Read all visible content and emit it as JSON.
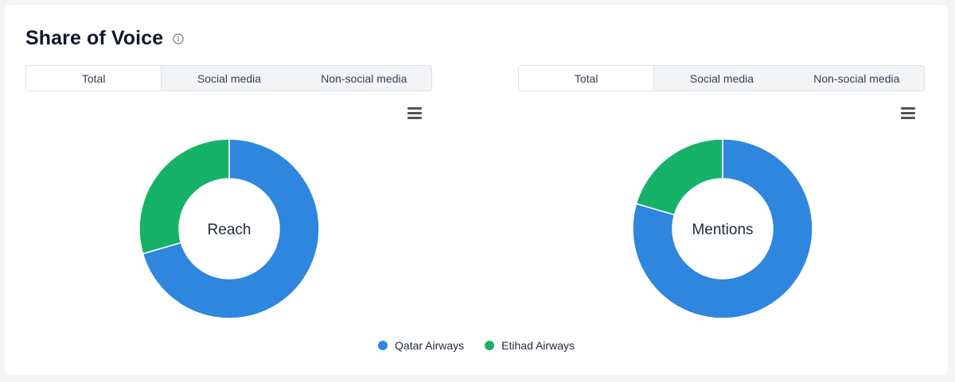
{
  "header": {
    "title": "Share of Voice"
  },
  "tabs": [
    "Total",
    "Social media",
    "Non-social media"
  ],
  "colors": {
    "qatar": "#2e86de",
    "etihad": "#17b26a"
  },
  "chart_data": [
    {
      "type": "pie",
      "center_label": "Reach",
      "series": [
        {
          "name": "Qatar Airways",
          "value": 70.5
        },
        {
          "name": "Etihad Airways",
          "value": 29.5
        }
      ]
    },
    {
      "type": "pie",
      "center_label": "Mentions",
      "series": [
        {
          "name": "Qatar Airways",
          "value": 79.5
        },
        {
          "name": "Etihad Airways",
          "value": 20.5
        }
      ]
    }
  ],
  "legend": [
    {
      "label": "Qatar Airways",
      "color": "#2e86de"
    },
    {
      "label": "Etihad Airways",
      "color": "#17b26a"
    }
  ]
}
